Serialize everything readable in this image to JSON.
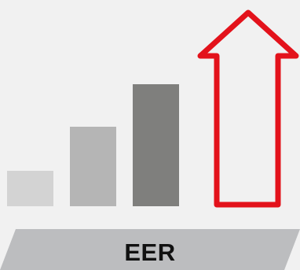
{
  "graphic": {
    "label": "EER",
    "icon": "up-arrow-icon",
    "colors": {
      "background": "#f1f1f1",
      "bar_light": "#d3d3d3",
      "bar_medium": "#b5b5b5",
      "bar_dark": "#7f7f7d",
      "arrow": "#e3121b",
      "band": "#bcbdbf",
      "label_text": "#111111"
    },
    "bars": [
      {
        "level": 1,
        "color": "#d3d3d3"
      },
      {
        "level": 2,
        "color": "#b5b5b5"
      },
      {
        "level": 3,
        "color": "#7f7f7d"
      }
    ]
  }
}
